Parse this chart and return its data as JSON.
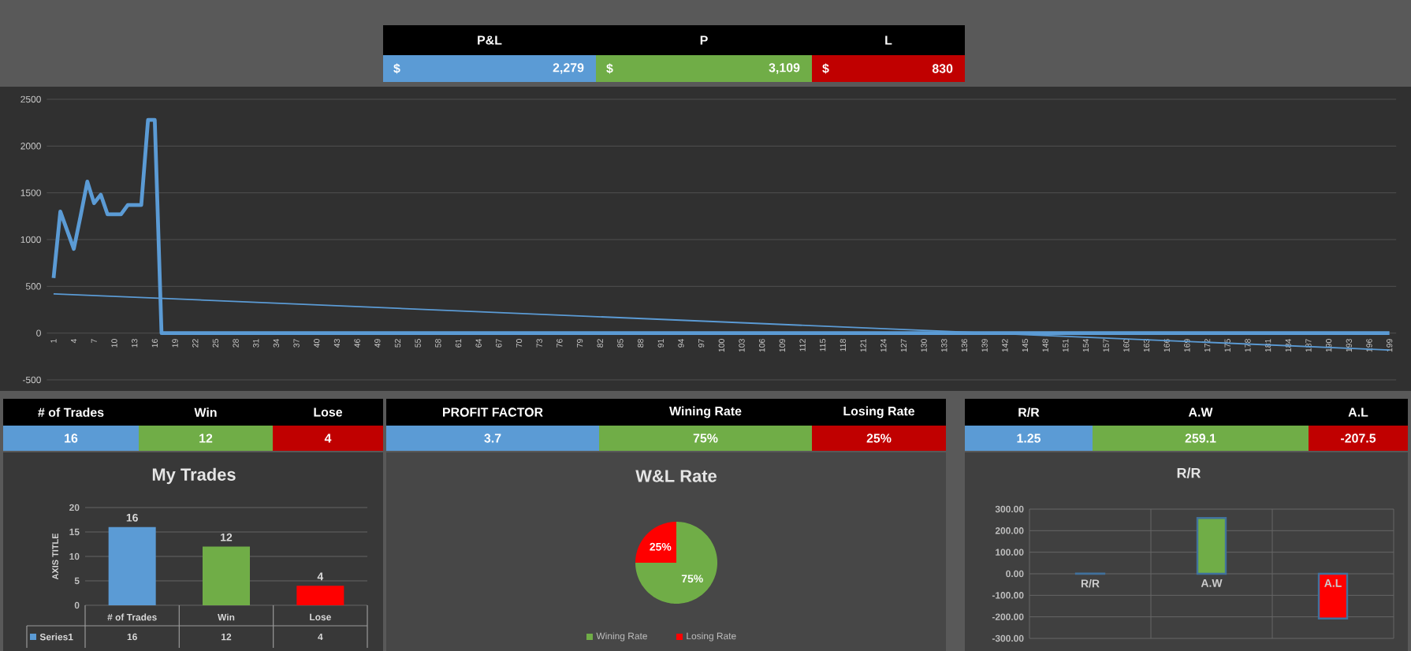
{
  "chart_data": [
    {
      "type": "other",
      "categories": [
        "P&L",
        "P",
        "L"
      ],
      "annotations": [
        "$",
        "$",
        "$"
      ],
      "series": [
        {
          "values": [
            2279,
            3109,
            830
          ],
          "value_labels": [
            "2,279",
            "3,109",
            "830"
          ],
          "colors": [
            "#5b9bd5",
            "#70ad47",
            "#c00000"
          ]
        }
      ]
    },
    {
      "type": "line",
      "x": [
        1,
        2,
        3,
        4,
        5,
        6,
        7,
        8,
        9,
        10,
        11,
        12,
        13,
        14,
        15,
        16,
        17,
        18,
        19,
        20,
        21,
        22,
        23,
        24,
        25,
        26,
        27,
        28,
        29,
        30,
        31,
        32,
        33,
        34,
        35,
        36,
        37,
        38,
        39,
        40,
        41,
        42,
        43,
        44,
        45,
        46,
        47,
        48,
        49,
        50,
        51,
        52,
        53,
        54,
        55,
        56,
        57,
        58,
        59,
        60,
        61,
        62,
        63,
        64,
        65,
        66,
        67,
        68,
        69,
        70,
        71,
        72,
        73,
        74,
        75,
        76,
        77,
        78,
        79,
        80,
        81,
        82,
        83,
        84,
        85,
        86,
        87,
        88,
        89,
        90,
        91,
        92,
        93,
        94,
        95,
        96,
        97,
        98,
        99,
        100,
        101,
        102,
        103,
        104,
        105,
        106,
        107,
        108,
        109,
        110,
        111,
        112,
        113,
        114,
        115,
        116,
        117,
        118,
        119,
        120,
        121,
        122,
        123,
        124,
        125,
        126,
        127,
        128,
        129,
        130,
        131,
        132,
        133,
        134,
        135,
        136,
        137,
        138,
        139,
        140,
        141,
        142,
        143,
        144,
        145,
        146,
        147,
        148,
        149,
        150,
        151,
        152,
        153,
        154,
        155,
        156,
        157,
        158,
        159,
        160,
        161,
        162,
        163,
        164,
        165,
        166,
        167,
        168,
        169,
        170,
        171,
        172,
        173,
        174,
        175,
        176,
        177,
        178,
        179,
        180,
        181,
        182,
        183,
        184,
        185,
        186,
        187,
        188,
        189,
        190,
        191,
        192,
        193,
        194,
        195,
        196,
        197,
        198,
        199
      ],
      "series": [
        {
          "color": "#5b9bd5",
          "values": [
            590,
            1300,
            1100,
            900,
            1250,
            1620,
            1390,
            1480,
            1270,
            1270,
            1270,
            1370,
            1370,
            1370,
            2279,
            2279,
            0,
            0,
            0,
            0,
            0,
            0,
            0,
            0,
            0,
            0,
            0,
            0,
            0,
            0,
            0,
            0,
            0,
            0,
            0,
            0,
            0,
            0,
            0,
            0,
            0,
            0,
            0,
            0,
            0,
            0,
            0,
            0,
            0,
            0,
            0,
            0,
            0,
            0,
            0,
            0,
            0,
            0,
            0,
            0,
            0,
            0,
            0,
            0,
            0,
            0,
            0,
            0,
            0,
            0,
            0,
            0,
            0,
            0,
            0,
            0,
            0,
            0,
            0,
            0,
            0,
            0,
            0,
            0,
            0,
            0,
            0,
            0,
            0,
            0,
            0,
            0,
            0,
            0,
            0,
            0,
            0,
            0,
            0,
            0,
            0,
            0,
            0,
            0,
            0,
            0,
            0,
            0,
            0,
            0,
            0,
            0,
            0,
            0,
            0,
            0,
            0,
            0,
            0,
            0,
            0,
            0,
            0,
            0,
            0,
            0,
            0,
            0,
            0,
            0,
            0,
            0,
            0,
            0,
            0,
            0,
            0,
            0,
            0,
            0,
            0,
            0,
            0,
            0,
            0,
            0,
            0,
            0,
            0,
            0,
            0,
            0,
            0,
            0,
            0,
            0,
            0,
            0,
            0,
            0,
            0,
            0,
            0,
            0,
            0,
            0,
            0,
            0,
            0,
            0,
            0,
            0,
            0,
            0,
            0,
            0,
            0,
            0,
            0,
            0,
            0,
            0,
            0,
            0,
            0,
            0,
            0,
            0,
            0,
            0,
            0,
            0,
            0,
            0,
            0,
            0,
            0,
            0,
            0
          ]
        },
        {
          "type": "line",
          "color": "#5b9bd5",
          "x": [
            1,
            199
          ],
          "values": [
            420,
            -180
          ]
        }
      ],
      "xlim": [
        0,
        200
      ],
      "xticks": [
        1,
        4,
        7,
        10,
        13,
        16,
        19,
        22,
        25,
        28,
        31,
        34,
        37,
        40,
        43,
        46,
        49,
        52,
        55,
        58,
        61,
        64,
        67,
        70,
        73,
        76,
        79,
        82,
        85,
        88,
        91,
        94,
        97,
        100,
        103,
        106,
        109,
        112,
        115,
        118,
        121,
        124,
        127,
        130,
        133,
        136,
        139,
        142,
        145,
        148,
        151,
        154,
        157,
        160,
        163,
        166,
        169,
        172,
        175,
        178,
        181,
        184,
        187,
        190,
        193,
        196,
        199
      ],
      "ylim": [
        -500,
        2500
      ],
      "yticks": [
        -500,
        0,
        500,
        1000,
        1500,
        2000,
        2500
      ],
      "grid": "y"
    },
    {
      "type": "other",
      "categories": [
        "# of Trades",
        "Win",
        "Lose",
        "PROFIT FACTOR",
        "Wining Rate",
        "Losing Rate",
        "R/R",
        "A.W",
        "A.L"
      ],
      "series": [
        {
          "values": [
            16,
            12,
            4,
            3.7,
            75,
            25,
            1.25,
            259.1,
            -207.5
          ],
          "value_labels": [
            "16",
            "12",
            "4",
            "3.7",
            "75%",
            "25%",
            "1.25",
            "259.1",
            "-207.5"
          ],
          "colors": [
            "#5b9bd5",
            "#70ad47",
            "#c00000",
            "#5b9bd5",
            "#70ad47",
            "#c00000",
            "#5b9bd5",
            "#70ad47",
            "#c00000"
          ]
        }
      ]
    },
    {
      "type": "bar",
      "title": "My Trades",
      "ylabel": "AXIS TITLE",
      "categories": [
        "# of Trades",
        "Win",
        "Lose"
      ],
      "series": [
        {
          "name": "Series1",
          "colors": [
            "#5b9bd5",
            "#70ad47",
            "#ff0000"
          ],
          "values": [
            16,
            12,
            4
          ],
          "value_labels": [
            "16",
            "12",
            "4"
          ]
        }
      ],
      "ylim": [
        0,
        20
      ],
      "yticks": [
        0,
        5,
        10,
        15,
        20
      ],
      "grid": "y",
      "data_labels": true
    },
    {
      "type": "pie",
      "title": "W&L Rate",
      "categories": [
        "Wining Rate",
        "Losing Rate"
      ],
      "values": [
        75,
        25
      ],
      "value_labels": [
        "75%",
        "25%"
      ],
      "colors": [
        "#70ad47",
        "#ff0000"
      ],
      "legend": "bottom"
    },
    {
      "type": "bar",
      "title": "R/R",
      "categories": [
        "R/R",
        "A.W",
        "A.L"
      ],
      "values": [
        1.25,
        259.1,
        -207.5
      ],
      "colors": [
        "#5b9bd5",
        "#70ad47",
        "#ff0000"
      ],
      "ylim": [
        -300,
        300
      ],
      "yticks": [
        {
          "value": -300,
          "label": "-300.00"
        },
        {
          "value": -200,
          "label": "-200.00"
        },
        {
          "value": -100,
          "label": "-100.00"
        },
        {
          "value": 0,
          "label": "0.00"
        },
        {
          "value": 100,
          "label": "100.00"
        },
        {
          "value": 200,
          "label": "200.00"
        },
        {
          "value": 300,
          "label": "300.00"
        }
      ],
      "grid": true
    }
  ]
}
